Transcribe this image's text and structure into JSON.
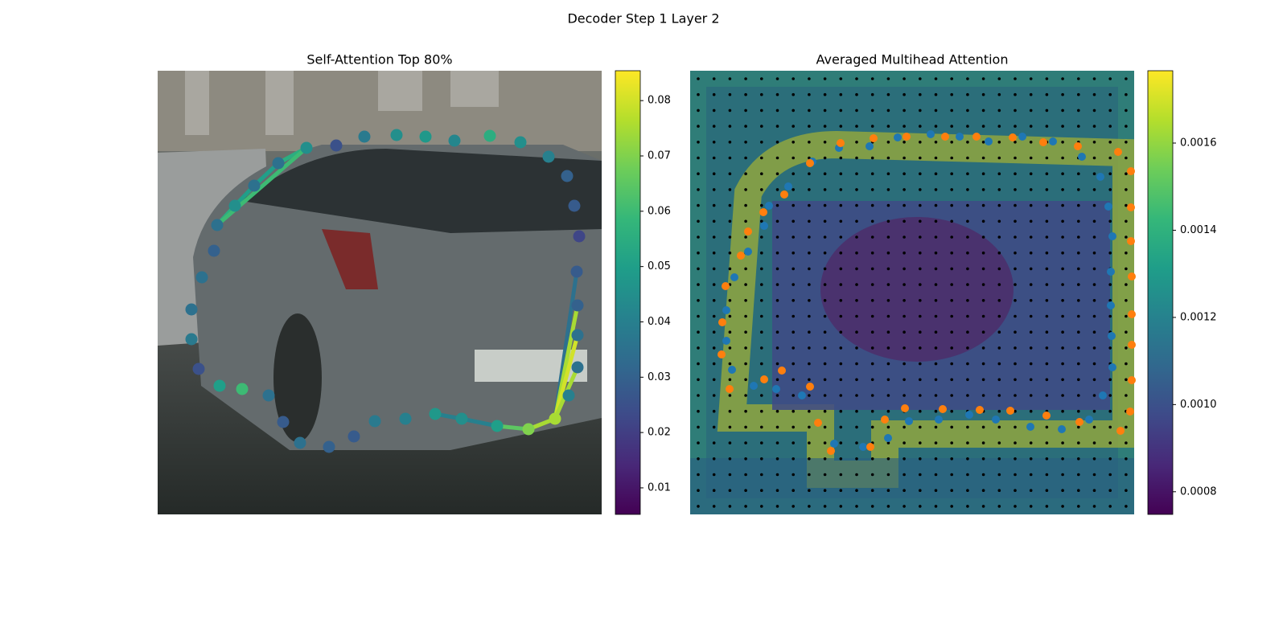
{
  "title": "Decoder Step 1 Layer 2",
  "chart_data": [
    {
      "type": "scatter",
      "title": "Self-Attention Top 80%",
      "xlim": [
        0,
        552
      ],
      "ylim": [
        552,
        0
      ],
      "x": [
        74,
        96,
        120,
        150,
        185,
        222,
        257,
        297,
        333,
        369,
        413,
        451,
        486,
        509,
        518,
        524,
        521,
        522,
        522,
        522,
        511,
        494,
        461,
        422,
        378,
        345,
        308,
        270,
        244,
        213,
        177,
        156,
        138,
        105,
        77,
        51,
        42,
        42,
        55,
        70
      ],
      "y": [
        192,
        168,
        143,
        115,
        96,
        93,
        82,
        80,
        82,
        87,
        81,
        89,
        107,
        131,
        168,
        206,
        250,
        292,
        329,
        369,
        404,
        433,
        446,
        442,
        433,
        427,
        433,
        436,
        455,
        468,
        463,
        437,
        404,
        396,
        392,
        371,
        334,
        297,
        257,
        224
      ],
      "values": [
        0.035,
        0.045,
        0.035,
        0.035,
        0.045,
        0.025,
        0.038,
        0.045,
        0.048,
        0.042,
        0.055,
        0.045,
        0.04,
        0.03,
        0.028,
        0.022,
        0.028,
        0.03,
        0.035,
        0.035,
        0.04,
        0.075,
        0.07,
        0.05,
        0.045,
        0.048,
        0.04,
        0.038,
        0.028,
        0.03,
        0.035,
        0.028,
        0.035,
        0.06,
        0.05,
        0.025,
        0.038,
        0.035,
        0.035,
        0.03
      ],
      "edges": [
        {
          "from": 21,
          "to": 16,
          "value": 0.035
        },
        {
          "from": 21,
          "to": 17,
          "value": 0.075
        },
        {
          "from": 21,
          "to": 18,
          "value": 0.08
        },
        {
          "from": 21,
          "to": 19,
          "value": 0.075
        },
        {
          "from": 21,
          "to": 22,
          "value": 0.075
        },
        {
          "from": 22,
          "to": 23,
          "value": 0.065
        },
        {
          "from": 23,
          "to": 24,
          "value": 0.04
        },
        {
          "from": 24,
          "to": 25,
          "value": 0.04
        },
        {
          "from": 0,
          "to": 1,
          "value": 0.055
        },
        {
          "from": 1,
          "to": 2,
          "value": 0.05
        },
        {
          "from": 2,
          "to": 3,
          "value": 0.05
        },
        {
          "from": 3,
          "to": 4,
          "value": 0.055
        },
        {
          "from": 0,
          "to": 4,
          "value": 0.06
        }
      ],
      "colorbar": {
        "colormap": "viridis",
        "lim": [
          0.0052,
          0.0854
        ],
        "ticks": [
          0.01,
          0.02,
          0.03,
          0.04,
          0.05,
          0.06,
          0.07,
          0.08
        ]
      }
    },
    {
      "type": "scatter",
      "title": "Averaged Multihead Attention",
      "xlim": [
        0,
        552
      ],
      "ylim": [
        552,
        0
      ],
      "series": [
        {
          "color": "#1f77b4",
          "x": [
            185,
            223,
            258,
            299,
            335,
            371,
            413,
            451,
            487,
            510,
            520,
            525,
            523,
            523,
            524,
            525,
            513,
            496,
            462,
            423,
            380,
            347,
            309,
            272,
            246,
            215,
            179,
            107,
            79,
            52,
            45,
            45,
            55,
            72,
            92,
            98,
            122,
            152,
            139
          ],
          "y": [
            96,
            94,
            83,
            79,
            82,
            88,
            82,
            88,
            107,
            132,
            169,
            206,
            250,
            292,
            330,
            369,
            404,
            434,
            446,
            443,
            434,
            428,
            434,
            436,
            457,
            468,
            464,
            396,
            392,
            372,
            336,
            298,
            257,
            225,
            193,
            168,
            144,
            113,
            404
          ]
        },
        {
          "color": "#ff7f0e",
          "x": [
            187,
            228,
            269,
            317,
            356,
            401,
            439,
            482,
            532,
            548,
            548,
            548,
            549,
            549,
            549,
            549,
            547,
            535,
            484,
            443,
            398,
            360,
            314,
            267,
            242,
            224,
            175,
            159,
            149,
            114,
            92,
            49,
            39,
            40,
            44,
            63,
            72,
            91,
            117,
            149
          ],
          "y": [
            90,
            84,
            82,
            82,
            82,
            83,
            89,
            94,
            101,
            125,
            170,
            212,
            256,
            303,
            341,
            385,
            424,
            448,
            437,
            429,
            423,
            422,
            421,
            420,
            434,
            468,
            473,
            438,
            393,
            373,
            384,
            396,
            353,
            313,
            268,
            230,
            200,
            176,
            154,
            115
          ]
        }
      ],
      "colorbar": {
        "colormap": "viridis",
        "lim": [
          0.000748,
          0.001766
        ],
        "ticks": [
          0.0008,
          {
            "value": 0.001,
            "label": "0.0010"
          },
          0.0012,
          0.0014,
          0.0016
        ]
      }
    }
  ]
}
